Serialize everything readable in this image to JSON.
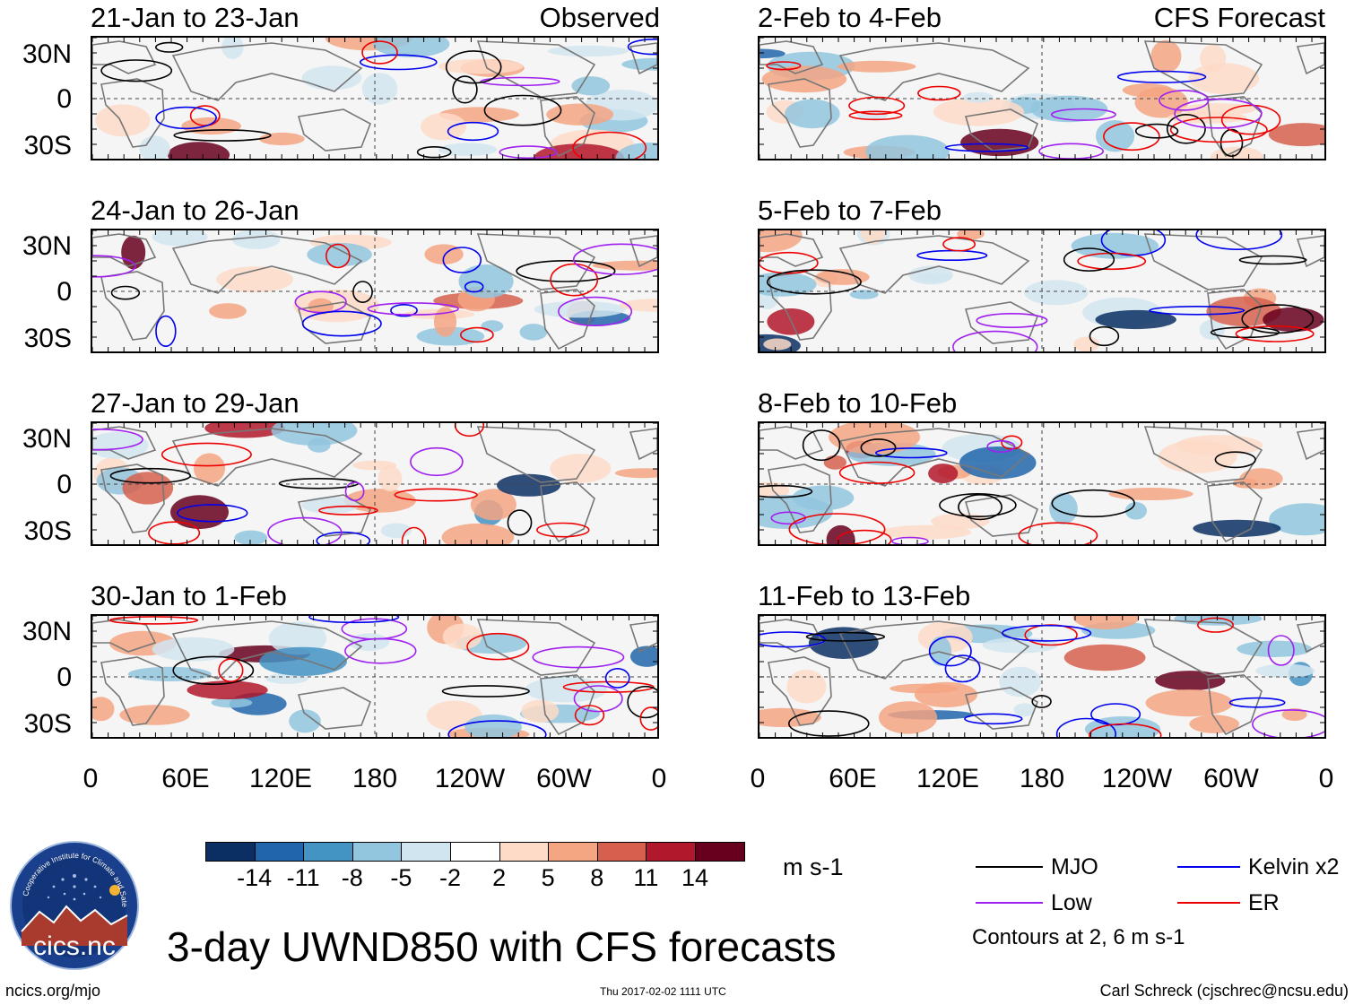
{
  "panels": [
    {
      "title": "21-Jan to 23-Jan",
      "tag": "Observed"
    },
    {
      "title": "2-Feb to 4-Feb",
      "tag": "CFS Forecast"
    },
    {
      "title": "24-Jan to 26-Jan",
      "tag": ""
    },
    {
      "title": "5-Feb to 7-Feb",
      "tag": ""
    },
    {
      "title": "27-Jan to 29-Jan",
      "tag": ""
    },
    {
      "title": "8-Feb to 10-Feb",
      "tag": ""
    },
    {
      "title": "30-Jan to 1-Feb",
      "tag": ""
    },
    {
      "title": "11-Feb to 13-Feb",
      "tag": ""
    }
  ],
  "y_ticks": [
    "30N",
    "0",
    "30S"
  ],
  "x_ticks": [
    "0",
    "60E",
    "120E",
    "180",
    "120W",
    "60W",
    "0"
  ],
  "colorbar": {
    "labels": [
      "-14",
      "-11",
      "-8",
      "-5",
      "-2",
      "2",
      "5",
      "8",
      "11",
      "14"
    ],
    "colors": [
      "#0b2f63",
      "#2166ac",
      "#4393c3",
      "#92c5de",
      "#d1e5f0",
      "#ffffff",
      "#fddbc7",
      "#f4a582",
      "#d6604d",
      "#b2182b",
      "#67001f"
    ],
    "units": "m s-1"
  },
  "legend": {
    "items": [
      {
        "label": "MJO",
        "color": "#000000"
      },
      {
        "label": "Kelvin x2",
        "color": "#0000ee"
      },
      {
        "label": "Low",
        "color": "#a020f0"
      },
      {
        "label": "ER",
        "color": "#ee0000"
      }
    ],
    "note": "Contours at 2, 6 m s-1"
  },
  "title": "3-day UWND850 with CFS forecasts",
  "logo_text": "cics.nc",
  "logo_ring_text": "Cooperative Institute for Climate and Satellites",
  "footer": {
    "url": "ncics.org/mjo",
    "timestamp": "Thu 2017-02-02 1111 UTC",
    "credit": "Carl Schreck (cjschrec@ncsu.edu)"
  }
}
